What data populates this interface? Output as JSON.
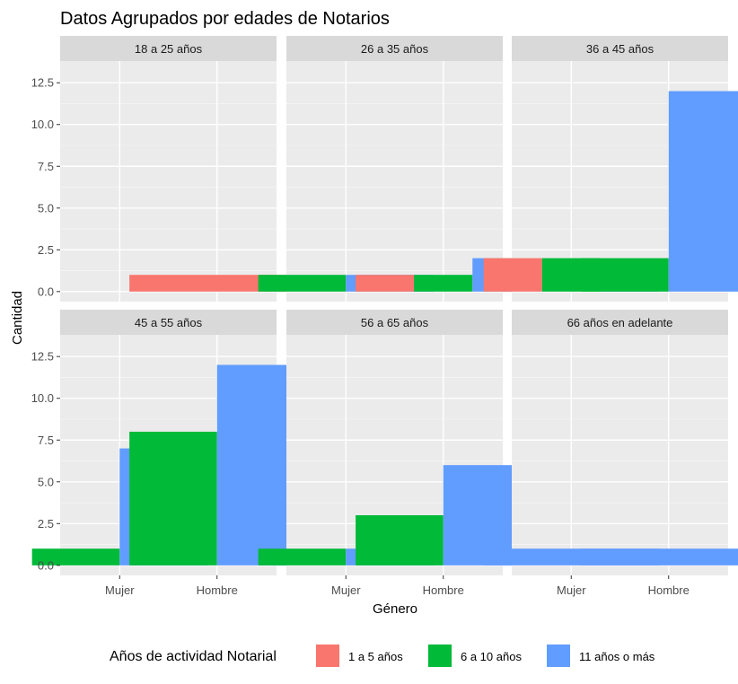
{
  "chart_data": {
    "type": "bar",
    "title": "Datos Agrupados por edades de Notarios",
    "xlabel": "Género",
    "ylabel": "Cantidad",
    "categories": [
      "Mujer",
      "Hombre"
    ],
    "ylim": [
      -0.6,
      13.8
    ],
    "yticks": [
      0.0,
      2.5,
      5.0,
      7.5,
      10.0,
      12.5
    ],
    "ytick_labels": [
      "0.0",
      "2.5",
      "5.0",
      "7.5",
      "10.0",
      "12.5"
    ],
    "grid": true,
    "legend": {
      "title": "Años de actividad Notarial",
      "placement": "bottom",
      "entries": [
        {
          "name": "1 a 5 años",
          "color": "#F8766D"
        },
        {
          "name": "6 a 10 años",
          "color": "#00BA38"
        },
        {
          "name": "11 años o más",
          "color": "#619CFF"
        }
      ]
    },
    "panels": [
      {
        "label": "18 a 25 años",
        "bars": [
          {
            "category": "Hombre",
            "series": "1 a 5 años",
            "value": 1
          }
        ]
      },
      {
        "label": "26 a 35 años",
        "bars": [
          {
            "category": "Mujer",
            "series": "6 a 10 años",
            "value": 1
          },
          {
            "category": "Mujer",
            "series": "11 años o más",
            "value": 1
          },
          {
            "category": "Hombre",
            "series": "1 a 5 años",
            "value": 1
          },
          {
            "category": "Hombre",
            "series": "6 a 10 años",
            "value": 1
          },
          {
            "category": "Hombre",
            "series": "11 años o más",
            "value": 2
          }
        ]
      },
      {
        "label": "36 a 45 años",
        "bars": [
          {
            "category": "Mujer",
            "series": "1 a 5 años",
            "value": 2
          },
          {
            "category": "Mujer",
            "series": "6 a 10 años",
            "value": 2
          },
          {
            "category": "Mujer",
            "series": "11 años o más",
            "value": 1
          },
          {
            "category": "Hombre",
            "series": "6 a 10 años",
            "value": 2
          },
          {
            "category": "Hombre",
            "series": "11 años o más",
            "value": 12
          }
        ]
      },
      {
        "label": "45 a 55 años",
        "bars": [
          {
            "category": "Mujer",
            "series": "6 a 10 años",
            "value": 1
          },
          {
            "category": "Mujer",
            "series": "11 años o más",
            "value": 7
          },
          {
            "category": "Hombre",
            "series": "6 a 10 años",
            "value": 8
          },
          {
            "category": "Hombre",
            "series": "11 años o más",
            "value": 12
          }
        ]
      },
      {
        "label": "56 a 65 años",
        "bars": [
          {
            "category": "Mujer",
            "series": "6 a 10 años",
            "value": 1
          },
          {
            "category": "Mujer",
            "series": "11 años o más",
            "value": 1
          },
          {
            "category": "Hombre",
            "series": "6 a 10 años",
            "value": 3
          },
          {
            "category": "Hombre",
            "series": "11 años o más",
            "value": 6
          }
        ]
      },
      {
        "label": "66 años en adelante",
        "bars": [
          {
            "category": "Mujer",
            "series": "11 años o más",
            "value": 1
          },
          {
            "category": "Hombre",
            "series": "11 años o más",
            "value": 1
          }
        ]
      }
    ]
  }
}
